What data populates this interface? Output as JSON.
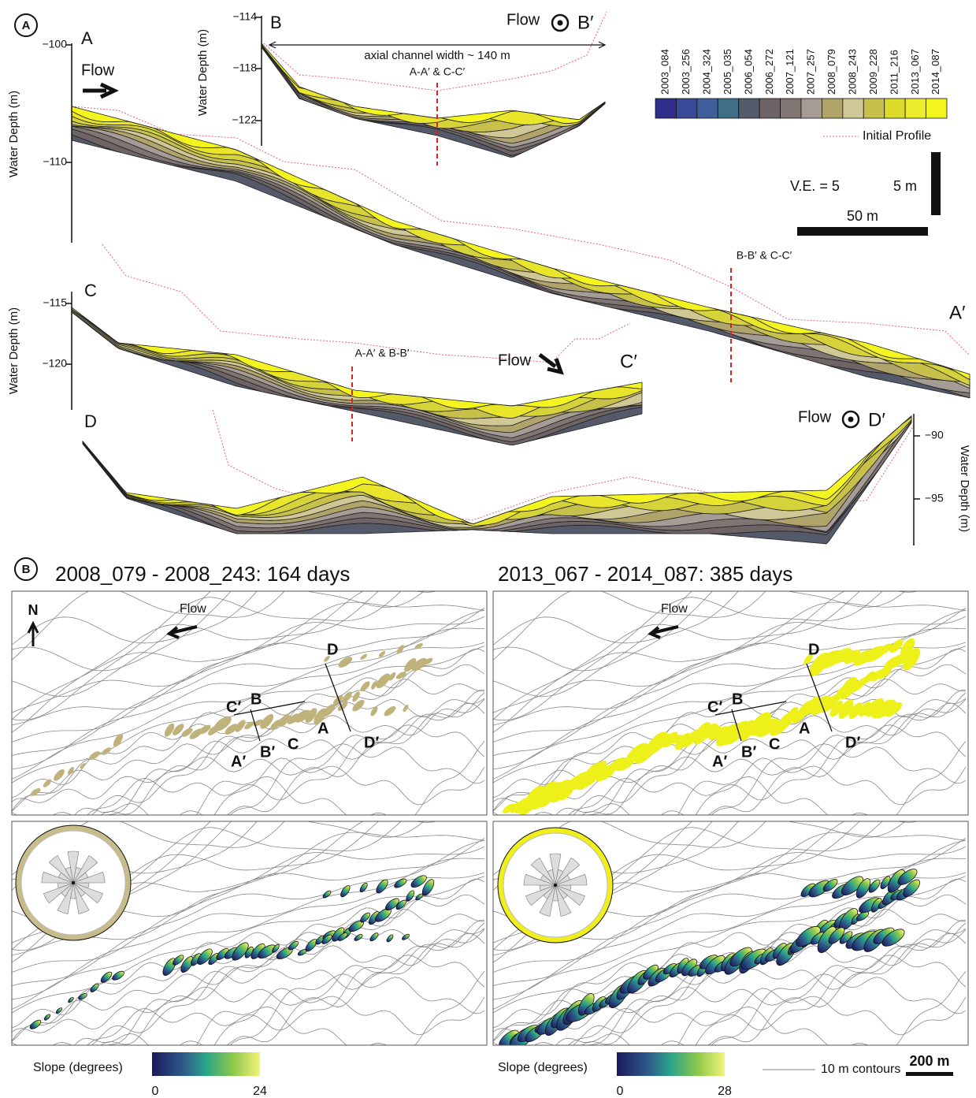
{
  "panel_a": {
    "label": "A",
    "profile_a": {
      "start": "A",
      "end": "A′",
      "flow": "Flow",
      "y_axis_label": "Water Depth (m)",
      "y_ticks": [
        "−100",
        "−110"
      ],
      "intersection": "B-B′ & C-C′"
    },
    "profile_b": {
      "start": "B",
      "end": "B′",
      "flow": "Flow",
      "y_axis_label": "Water Depth (m)",
      "y_ticks": [
        "−114",
        "−118",
        "−122"
      ],
      "width_annotation": "axial channel width ~ 140 m",
      "intersection": "A-A′ & C-C′"
    },
    "profile_c": {
      "start": "C",
      "end": "C′",
      "flow": "Flow",
      "y_axis_label": "Water Depth (m)",
      "y_ticks": [
        "−115",
        "−120"
      ],
      "intersection": "A-A′ & B-B′"
    },
    "profile_d": {
      "start": "D",
      "end": "D′",
      "flow": "Flow",
      "y_axis_label": "Water Depth (m)",
      "y_ticks": [
        "−90",
        "−95"
      ]
    },
    "legend": {
      "surveys": [
        {
          "name": "2003_084",
          "color": "#2d2d8c"
        },
        {
          "name": "2003_256",
          "color": "#3a4a98"
        },
        {
          "name": "2004_324",
          "color": "#3e5f9a"
        },
        {
          "name": "2005_035",
          "color": "#3f6e86"
        },
        {
          "name": "2006_054",
          "color": "#555a6a"
        },
        {
          "name": "2006_272",
          "color": "#6e6466"
        },
        {
          "name": "2007_121",
          "color": "#7f7572"
        },
        {
          "name": "2007_257",
          "color": "#a59d95"
        },
        {
          "name": "2008_079",
          "color": "#b0a46a"
        },
        {
          "name": "2008_243",
          "color": "#cfc796"
        },
        {
          "name": "2009_228",
          "color": "#c7c14b"
        },
        {
          "name": "2011_216",
          "color": "#dcdb2a"
        },
        {
          "name": "2013_067",
          "color": "#ecec2c"
        },
        {
          "name": "2014_087",
          "color": "#f4f41e"
        }
      ],
      "initial_profile": "Initial Profile"
    },
    "scale": {
      "vertical_exaggeration": "V.E. = 5",
      "vertical_bar": "5 m",
      "horizontal_bar": "50 m"
    }
  },
  "panel_b": {
    "label": "B",
    "left": {
      "title": "2008_079 - 2008_243: 164 days",
      "north": "N",
      "flow": "Flow",
      "labels": [
        "D",
        "C′",
        "B",
        "A",
        "C",
        "A′",
        "B′",
        "D′"
      ],
      "slope_label": "Slope (degrees)",
      "slope_min": "0",
      "slope_max": "24"
    },
    "right": {
      "title": "2013_067 - 2014_087: 385 days",
      "flow": "Flow",
      "labels": [
        "D",
        "C′",
        "B",
        "A",
        "C",
        "A′",
        "B′",
        "D′"
      ],
      "slope_label": "Slope (degrees)",
      "slope_min": "0",
      "slope_max": "28"
    },
    "contour_legend": "10 m contours",
    "scale_bar": "200 m"
  }
}
